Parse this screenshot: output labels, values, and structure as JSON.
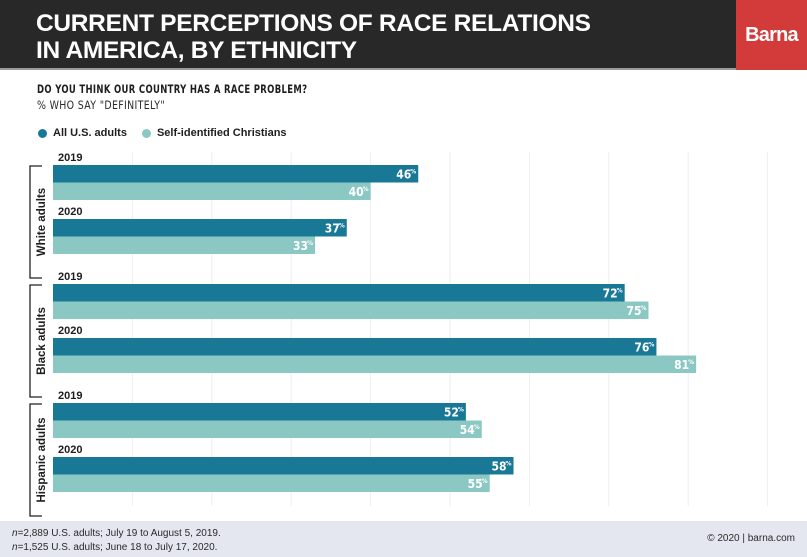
{
  "header": {
    "title_line1": "CURRENT PERCEPTIONS OF RACE RELATIONS",
    "title_line2": "IN AMERICA, BY ETHNICITY",
    "logo": "Barna"
  },
  "colors": {
    "header_bg": "#282828",
    "brand_red": "#d33a3a",
    "all_adults": "#1a7897",
    "christians": "#8cc8c3",
    "footer_bg": "#e4e7ef"
  },
  "chart_data": {
    "type": "bar",
    "orientation": "horizontal",
    "title": "DO YOU THINK OUR COUNTRY HAS A RACE PROBLEM?",
    "subtitle": "% WHO SAY \"DEFINITELY\"",
    "xlabel": "",
    "ylabel": "",
    "xlim": [
      0,
      100
    ],
    "grid": true,
    "gridline_step": 10,
    "legend_position": "top-left",
    "value_suffix": "%",
    "series_names": [
      "All U.S. adults",
      "Self-identified Christians"
    ],
    "groups": [
      {
        "label": "White adults",
        "years": [
          {
            "year": "2019",
            "values": [
              46,
              40
            ]
          },
          {
            "year": "2020",
            "values": [
              37,
              33
            ]
          }
        ]
      },
      {
        "label": "Black adults",
        "years": [
          {
            "year": "2019",
            "values": [
              72,
              75
            ]
          },
          {
            "year": "2020",
            "values": [
              76,
              81
            ]
          }
        ]
      },
      {
        "label": "Hispanic adults",
        "years": [
          {
            "year": "2019",
            "values": [
              52,
              54
            ]
          },
          {
            "year": "2020",
            "values": [
              58,
              55
            ]
          }
        ]
      }
    ]
  },
  "legend": {
    "items": [
      {
        "label": "All U.S. adults"
      },
      {
        "label": "Self-identified Christians"
      }
    ]
  },
  "footer": {
    "note1_n": "n",
    "note1_rest": "=2,889 U.S. adults; July 19 to August 5, 2019.",
    "note2_n": "n",
    "note2_rest": "=1,525 U.S. adults; June 18 to July 17, 2020.",
    "copyright": "© 2020 | barna.com"
  }
}
